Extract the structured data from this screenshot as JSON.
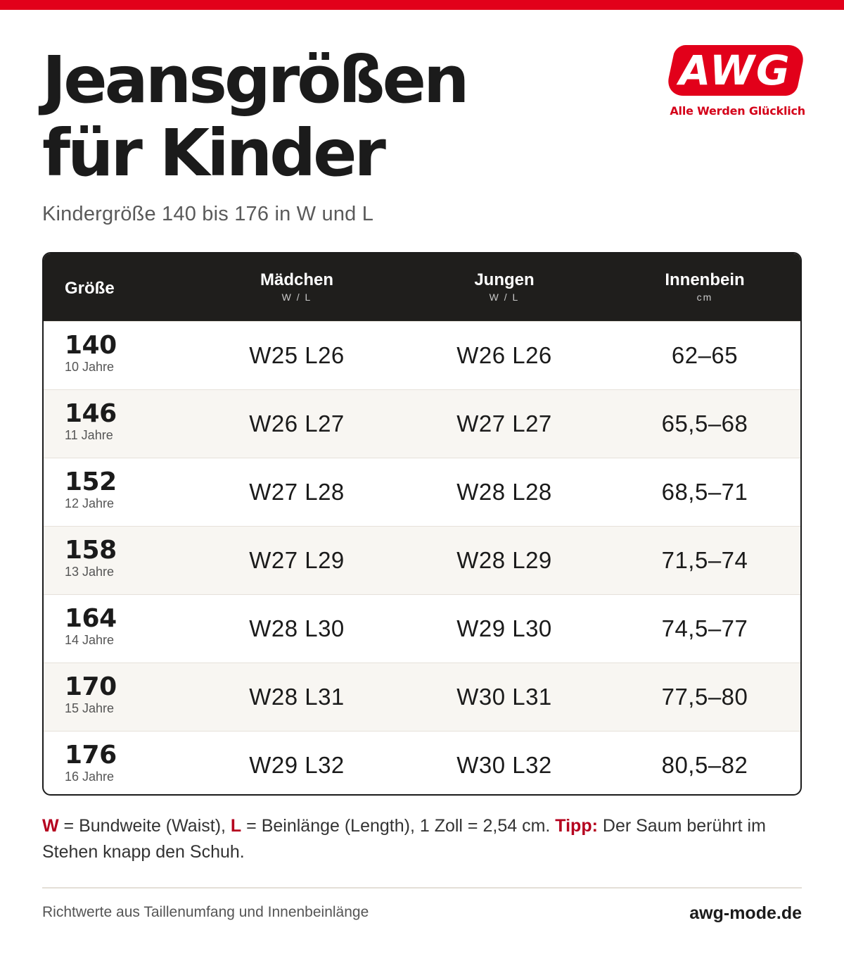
{
  "colors": {
    "accent": "#e2001a",
    "header_bg": "#1f1e1c",
    "alt_row_bg": "#f8f6f2",
    "highlight_text": "#b5001e"
  },
  "page": {
    "title_line1": "Jeansgrößen",
    "title_line2": "für Kinder",
    "subtitle": "Kindergröße 140 bis 176 in W und L"
  },
  "logo": {
    "wordmark": "AWG",
    "tagline": "Alle Werden Glücklich"
  },
  "table": {
    "headers": {
      "size": "Größe",
      "girls": "Mädchen",
      "girls_sub": "W / L",
      "boys": "Jungen",
      "boys_sub": "W / L",
      "inseam": "Innenbein",
      "inseam_sub": "cm"
    },
    "rows": [
      {
        "size": "140",
        "age": "10 Jahre",
        "girls": "W25 L26",
        "boys": "W26 L26",
        "inseam": "62–65"
      },
      {
        "size": "146",
        "age": "11 Jahre",
        "girls": "W26 L27",
        "boys": "W27 L27",
        "inseam": "65,5–68"
      },
      {
        "size": "152",
        "age": "12 Jahre",
        "girls": "W27 L28",
        "boys": "W28 L28",
        "inseam": "68,5–71"
      },
      {
        "size": "158",
        "age": "13 Jahre",
        "girls": "W27 L29",
        "boys": "W28 L29",
        "inseam": "71,5–74"
      },
      {
        "size": "164",
        "age": "14 Jahre",
        "girls": "W28 L30",
        "boys": "W29 L30",
        "inseam": "74,5–77"
      },
      {
        "size": "170",
        "age": "15 Jahre",
        "girls": "W28 L31",
        "boys": "W30 L31",
        "inseam": "77,5–80"
      },
      {
        "size": "176",
        "age": "16 Jahre",
        "girls": "W29 L32",
        "boys": "W30 L32",
        "inseam": "80,5–82"
      }
    ]
  },
  "note": {
    "w_key": "W",
    "w_text": " = Bundweite (Waist), ",
    "l_key": "L",
    "l_text": " = Beinlänge (Length), 1 Zoll = 2,54 cm. ",
    "tip_key": "Tipp:",
    "tip_text": " Der Saum berührt im Stehen knapp den Schuh."
  },
  "footer": {
    "source": "Richtwerte aus Taillenumfang und Innenbeinlänge",
    "website": "awg-mode.de"
  }
}
